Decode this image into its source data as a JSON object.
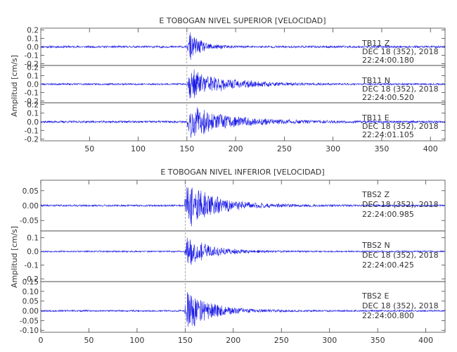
{
  "chart_data": [
    {
      "type": "line",
      "title": "E TOBOGAN NIVEL SUPERIOR [VELOCIDAD]",
      "ylabel": "Amplitud [cm/s]",
      "xlabel": "",
      "xlim": [
        0,
        415
      ],
      "x_ticks": [
        "50",
        "100",
        "150",
        "200",
        "250",
        "300",
        "350",
        "400"
      ],
      "x_tick_values": [
        50,
        100,
        150,
        200,
        250,
        300,
        350,
        400
      ],
      "marker_x": 150,
      "trace_color": "#1a1ae6",
      "panels": [
        {
          "station_label": "TB11    Z",
          "date_label": "DEC 18 (352), 2018",
          "time_label": "22:24:00.180",
          "ylim": [
            -0.22,
            0.22
          ],
          "y_ticks": [
            "0.2",
            "0.1",
            "0.0",
            "-0.1",
            "-0.2"
          ],
          "y_tick_values": [
            0.2,
            0.1,
            0.0,
            -0.1,
            -0.2
          ],
          "event_x": 152,
          "peak": 0.2,
          "decay": 12,
          "noise": 0.012,
          "seed": 11
        },
        {
          "station_label": "TB11    N",
          "date_label": "DEC 18 (352), 2018",
          "time_label": "22:24:00.520",
          "ylim": [
            -0.22,
            0.22
          ],
          "y_ticks": [
            "0.2",
            "0.1",
            "0.0",
            "-0.1",
            "-0.2"
          ],
          "y_tick_values": [
            0.2,
            0.1,
            0.0,
            -0.1,
            -0.2
          ],
          "event_x": 152,
          "peak": 0.19,
          "decay": 35,
          "noise": 0.01,
          "seed": 23
        },
        {
          "station_label": "TB11    E",
          "date_label": "DEC 18 (352), 2018",
          "time_label": "22:24:01.105",
          "ylim": [
            -0.22,
            0.22
          ],
          "y_ticks": [
            "0.2",
            "0.1",
            "0.0",
            "-0.1",
            "-0.2"
          ],
          "y_tick_values": [
            0.2,
            0.1,
            0.0,
            -0.1,
            -0.2
          ],
          "event_x": 152,
          "peak": 0.2,
          "decay": 40,
          "noise": 0.012,
          "seed": 37
        }
      ]
    },
    {
      "type": "line",
      "title": "E TOBOGAN NIVEL INFERIOR [VELOCIDAD]",
      "ylabel": "Amplitud [cm/s]",
      "xlabel": "",
      "xlim": [
        0,
        420
      ],
      "x_ticks": [
        "0",
        "50",
        "100",
        "150",
        "200",
        "250",
        "300",
        "350",
        "400"
      ],
      "x_tick_values": [
        0,
        50,
        100,
        150,
        200,
        250,
        300,
        350,
        400
      ],
      "marker_x": 150,
      "trace_color": "#1a1ae6",
      "panels": [
        {
          "station_label": "TBS2    Z",
          "date_label": "DEC 18 (352), 2018",
          "time_label": "22:24:00.985",
          "ylim": [
            -0.085,
            0.085
          ],
          "y_ticks": [
            "0.05",
            "0.00",
            "-0.05"
          ],
          "y_tick_values": [
            0.05,
            0.0,
            -0.05
          ],
          "event_x": 151,
          "peak": 0.085,
          "decay": 30,
          "noise": 0.003,
          "seed": 41
        },
        {
          "station_label": "TBS2    N",
          "date_label": "DEC 18 (352), 2018",
          "time_label": "22:24:00.425",
          "ylim": [
            -0.22,
            0.15
          ],
          "y_ticks": [
            "0.1",
            "0.0",
            "-0.1",
            "-0.2"
          ],
          "y_tick_values": [
            0.1,
            0.0,
            -0.1,
            -0.2
          ],
          "event_x": 151,
          "peak": 0.12,
          "decay": 25,
          "noise": 0.005,
          "seed": 53
        },
        {
          "station_label": "TBS2    E",
          "date_label": "DEC 18 (352), 2018",
          "time_label": "22:24:00.800",
          "ylim": [
            -0.11,
            0.15
          ],
          "y_ticks": [
            "0.15",
            "0.10",
            "0.05",
            "0.00",
            "-0.05",
            "-0.10"
          ],
          "y_tick_values": [
            0.15,
            0.1,
            0.05,
            0.0,
            -0.05,
            -0.1
          ],
          "event_x": 151,
          "peak": 0.11,
          "decay": 25,
          "noise": 0.004,
          "seed": 67
        }
      ]
    }
  ]
}
